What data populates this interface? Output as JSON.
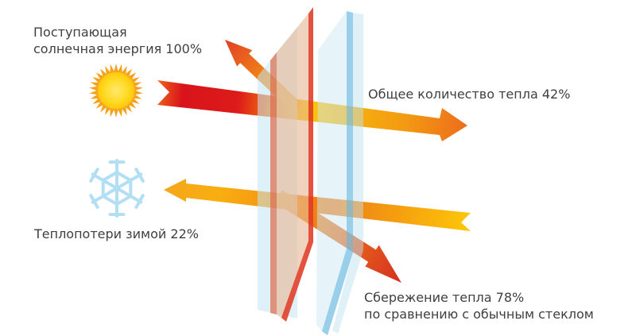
{
  "diagram": {
    "labels": {
      "incoming_line1": "Поступающая",
      "incoming_line2": "солнечная энергия 100%",
      "total_heat": "Общее количество тепла 42%",
      "winter_loss": "Теплопотери зимой 22%",
      "savings_line1": "Сбережение тепла 78%",
      "savings_line2": "по сравнению с обычным стеклом"
    },
    "values": {
      "incoming_solar_pct": 100,
      "total_heat_pct": 42,
      "winter_loss_pct": 22,
      "heat_savings_pct": 78
    },
    "icons": {
      "sun": "sun-icon",
      "snowflake": "snowflake-icon"
    },
    "colors": {
      "text": "#3f3f3f",
      "sun_rays": "#f6a21f",
      "sun_core": "#ffd316",
      "snowflake": "#b3dff4",
      "arrow_hot_red": "#d8141a",
      "arrow_orange": "#ec6d1c",
      "arrow_yellow": "#fdc60a",
      "glass_warm_tint": "#e7b896",
      "glass_warm_edge": "#e03a24",
      "glass_cool_tint": "#cdeaf3",
      "glass_cool_edge": "#7fc3e2"
    }
  }
}
